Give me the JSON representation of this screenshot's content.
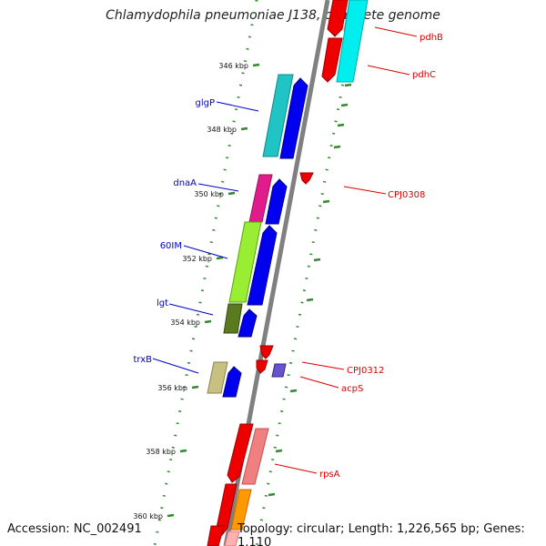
{
  "title": "Chlamydophila pneumoniae J138, complete genome",
  "footer": {
    "accession": "Accession: NC_002491",
    "info": "Topology: circular; Length: 1,226,565 bp; Genes: 1,110"
  },
  "colors": {
    "backbone": "#888888",
    "tick": "#2e8b2e",
    "left_label": "#0000cc",
    "right_label": "#dd0000"
  },
  "ticks": [
    {
      "kbp": 346,
      "label": "346 kbp"
    },
    {
      "kbp": 348,
      "label": "348 kbp"
    },
    {
      "kbp": 350,
      "label": "350 kbp"
    },
    {
      "kbp": 352,
      "label": "352 kbp"
    },
    {
      "kbp": 354,
      "label": "354 kbp"
    },
    {
      "kbp": 356,
      "label": "356 kbp"
    },
    {
      "kbp": 358,
      "label": "358 kbp"
    },
    {
      "kbp": 360,
      "label": "360 kbp"
    }
  ],
  "left_labels": [
    {
      "name": "glgP",
      "label": "glgP"
    },
    {
      "name": "dnaA",
      "label": "dnaA"
    },
    {
      "name": "60IM",
      "label": "60IM"
    },
    {
      "name": "lgt",
      "label": "lgt"
    },
    {
      "name": "trxB",
      "label": "trxB"
    }
  ],
  "right_labels": [
    {
      "name": "pdhB",
      "label": "pdhB"
    },
    {
      "name": "pdhC",
      "label": "pdhC"
    },
    {
      "name": "CPj0308",
      "label": "CPJ0308"
    },
    {
      "name": "CPj0312",
      "label": "CPJ0312"
    },
    {
      "name": "acpS",
      "label": "acpS"
    },
    {
      "name": "rpsA",
      "label": "rpsA"
    }
  ]
}
